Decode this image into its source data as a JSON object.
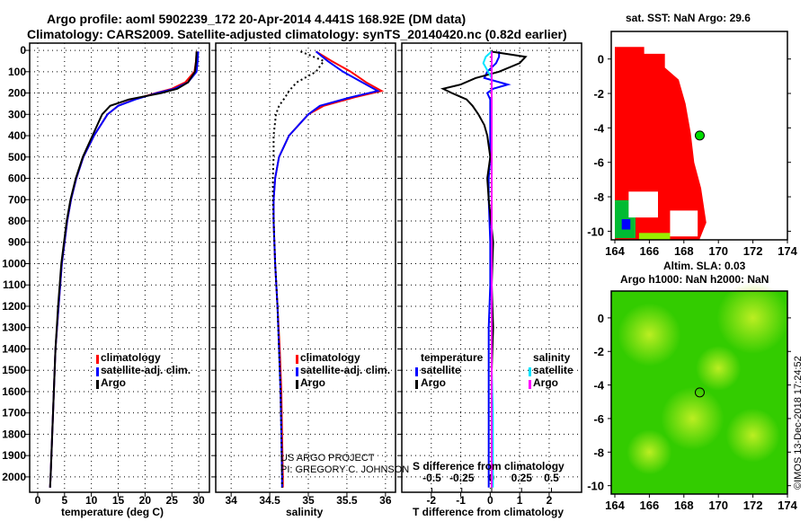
{
  "title_line1": "Argo profile: aoml 5902239_172 20-Apr-2014 4.441S 168.92E (DM data)",
  "title_line2": "Climatology: CARS2009. Satellite-adjusted climatology: synTS_20140420.nc (0.82d earlier)",
  "credit_line1": "US ARGO PROJECT",
  "credit_line2": "PI: GREGORY C. JOHNSON",
  "timestamp": "©IMOS 13-Dec-2018 17:24:52",
  "colors": {
    "climatology": "#ff0000",
    "satellite": "#0000ff",
    "argo": "#000000",
    "sal_satellite": "#00e5ff",
    "sal_argo": "#ff00ff",
    "sst_fill": "#ff0000",
    "sla_fill": "#33cc00"
  },
  "chart_data": [
    {
      "type": "line",
      "name": "temperature",
      "xlabel": "temperature (deg C)",
      "xlim": [
        -1.5,
        32
      ],
      "ylim": [
        2072,
        -34
      ],
      "xticks": [
        0,
        5,
        10,
        15,
        20,
        25,
        30
      ],
      "yticks": [
        0,
        100,
        200,
        300,
        400,
        500,
        600,
        700,
        800,
        900,
        1000,
        1100,
        1200,
        1300,
        1400,
        1500,
        1600,
        1700,
        1800,
        1900,
        2000
      ],
      "legend": [
        "climatology",
        "satellite-adj. clim.",
        "Argo"
      ],
      "legend_position": "lower-center",
      "depth": [
        5,
        50,
        100,
        150,
        180,
        200,
        230,
        260,
        300,
        400,
        500,
        600,
        700,
        800,
        1000,
        1200,
        1400,
        1600,
        1800,
        2000,
        2050
      ],
      "series": [
        {
          "name": "climatology",
          "values": [
            29.6,
            29.5,
            29.2,
            27.5,
            25,
            22,
            18,
            15,
            13,
            10.5,
            8.5,
            7.2,
            6.2,
            5.5,
            4.5,
            3.9,
            3.3,
            3.0,
            2.7,
            2.4,
            2.3
          ]
        },
        {
          "name": "satellite-adj. clim.",
          "values": [
            29.9,
            29.8,
            29.6,
            28,
            25.5,
            22.2,
            18.2,
            15,
            13,
            10.5,
            8.5,
            7.2,
            6.2,
            5.5,
            4.5,
            3.9,
            3.3,
            3.0,
            2.7,
            2.4,
            2.3
          ]
        },
        {
          "name": "Argo",
          "values": [
            29.6,
            29.5,
            29.3,
            28,
            26,
            23,
            17,
            13.5,
            12,
            10.2,
            8.4,
            7.1,
            6.1,
            5.4,
            4.4,
            3.8,
            3.3,
            3.0,
            2.7,
            2.4,
            2.3
          ]
        }
      ]
    },
    {
      "type": "line",
      "name": "salinity",
      "xlabel": "salinity",
      "xlim": [
        33.8,
        36.13
      ],
      "ylim": [
        2072,
        -34
      ],
      "xticks": [
        34,
        34.5,
        35,
        35.5,
        36
      ],
      "legend": [
        "climatology",
        "satellite-adj. clim.",
        "Argo"
      ],
      "legend_position": "lower-center",
      "depth": [
        5,
        50,
        100,
        150,
        190,
        220,
        260,
        300,
        400,
        500,
        600,
        700,
        800,
        1000,
        1200,
        1400,
        1600,
        1800,
        2000,
        2050
      ],
      "series": [
        {
          "name": "climatology",
          "values": [
            35.1,
            35.3,
            35.55,
            35.75,
            35.95,
            35.6,
            35.2,
            35.0,
            34.75,
            34.62,
            34.57,
            34.55,
            34.55,
            34.57,
            34.6,
            34.63,
            34.65,
            34.66,
            34.67,
            34.67
          ]
        },
        {
          "name": "satellite-adj. clim.",
          "values": [
            35.1,
            35.25,
            35.45,
            35.7,
            35.9,
            35.55,
            35.15,
            35.0,
            34.75,
            34.62,
            34.57,
            34.55,
            34.55,
            34.57,
            34.6,
            34.62,
            34.64,
            34.65,
            34.66,
            34.66
          ]
        },
        {
          "name": "Argo",
          "values": [
            34.9,
            35.2,
            35.1,
            34.85,
            34.75,
            34.7,
            34.62,
            34.58,
            34.55,
            34.55,
            34.54,
            34.54,
            34.55,
            34.57,
            34.6,
            34.62,
            34.64,
            34.65,
            34.66,
            34.66
          ]
        }
      ]
    },
    {
      "type": "line",
      "name": "difference",
      "xlabel": "T difference from climatology",
      "x2label": "S difference from climatology",
      "xlim": [
        -3,
        3.1
      ],
      "x2lim": [
        -0.5,
        0.5
      ],
      "xticks": [
        -2,
        -1,
        0,
        1,
        2
      ],
      "x2ticks": [
        -0.5,
        -0.25,
        0,
        0.25,
        0.5
      ],
      "ylim": [
        2072,
        -34
      ],
      "legend_temperature": {
        "title": "temperature",
        "items": [
          "satellite",
          "Argo"
        ]
      },
      "legend_salinity": {
        "title": "salinity",
        "items": [
          "satellite",
          "Argo"
        ]
      },
      "depth": [
        5,
        30,
        60,
        100,
        130,
        160,
        180,
        200,
        230,
        260,
        300,
        350,
        400,
        500,
        600,
        700,
        900,
        1100,
        1300,
        1500,
        1700,
        1900,
        2050
      ],
      "series": [
        {
          "name": "T satellite",
          "values": [
            0.3,
            0.3,
            0.2,
            -0.1,
            -0.2,
            0.6,
            0.1,
            -0.1,
            0,
            0,
            0,
            0,
            0,
            0,
            -0.05,
            -0.05,
            0,
            0,
            -0.05,
            -0.05,
            -0.05,
            -0.05,
            -0.05
          ]
        },
        {
          "name": "T Argo",
          "values": [
            0,
            1.2,
            1.0,
            0.3,
            -0.5,
            -1.0,
            -1.6,
            -1.3,
            -0.8,
            -0.6,
            -0.4,
            -0.2,
            -0.1,
            0,
            -0.1,
            -0.05,
            0.1,
            0.05,
            0.1,
            0.05,
            0.05,
            0.05,
            0.05
          ]
        },
        {
          "name": "S satellite",
          "values": [
            0,
            -0.05,
            -0.07,
            -0.03,
            0,
            0,
            0,
            0,
            0,
            0,
            0,
            0,
            0,
            0,
            0,
            0,
            0,
            0,
            0,
            0,
            0.01,
            0.01,
            0.01
          ]
        },
        {
          "name": "S Argo",
          "values": [
            0,
            0,
            0,
            0,
            0,
            0,
            0,
            0,
            0,
            0,
            0,
            0,
            0,
            0,
            0,
            0,
            0,
            0,
            0,
            0,
            0,
            0,
            0
          ]
        }
      ]
    },
    {
      "type": "heatmap",
      "name": "sat-sst-map",
      "title": "sat. SST: NaN Argo: 29.6",
      "xlim": [
        164,
        174
      ],
      "ylim": [
        -10.5,
        1.6
      ],
      "xticks": [
        164,
        166,
        168,
        170,
        172,
        174
      ],
      "yticks": [
        0,
        -2,
        -4,
        -6,
        -8,
        -10
      ],
      "argo_position": [
        168.92,
        -4.441
      ]
    },
    {
      "type": "heatmap",
      "name": "altimetry-sla-map",
      "title": "Altim. SLA: 0.03",
      "subtitle": "Argo h1000: NaN h2000: NaN",
      "xlim": [
        164,
        174
      ],
      "ylim": [
        -10.5,
        1.6
      ],
      "xticks": [
        164,
        166,
        168,
        170,
        172,
        174
      ],
      "yticks": [
        0,
        -2,
        -4,
        -6,
        -8,
        -10
      ],
      "argo_position": [
        168.92,
        -4.441
      ]
    }
  ]
}
